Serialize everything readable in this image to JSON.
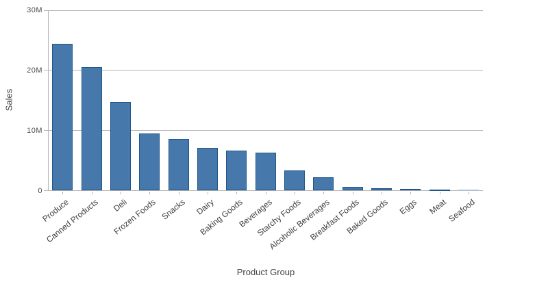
{
  "chart_data": {
    "type": "bar",
    "title": "",
    "xlabel": "Product Group",
    "ylabel": "Sales",
    "categories": [
      "Produce",
      "Canned Products",
      "Deli",
      "Frozen Foods",
      "Snacks",
      "Dairy",
      "Baking Goods",
      "Beverages",
      "Starchy Foods",
      "Alcoholic Beverages",
      "Breakfast Foods",
      "Baked Goods",
      "Eggs",
      "Meat",
      "Seafood"
    ],
    "values": [
      24.4,
      20.6,
      14.7,
      9.5,
      8.6,
      7.1,
      6.7,
      6.3,
      3.4,
      2.2,
      0.6,
      0.35,
      0.25,
      0.12,
      0.05
    ],
    "values_unit": "millions",
    "ylim": [
      0,
      30
    ],
    "yticks": [
      {
        "value": 0,
        "label": "0"
      },
      {
        "value": 10,
        "label": "10M"
      },
      {
        "value": 20,
        "label": "20M"
      },
      {
        "value": 30,
        "label": "30M"
      }
    ],
    "grid": "horizontal",
    "legend": "none",
    "colors": {
      "bar_fill": "#4678ab",
      "bar_border": "#1e5689",
      "bar_fill_tiny": "#c7d5e7",
      "bar_border_tiny": "#aec2da",
      "grid": "#b2b2b2",
      "axis": "#b2b2b2",
      "tick_label": "#4c4c4c",
      "axis_title": "#404040"
    }
  }
}
